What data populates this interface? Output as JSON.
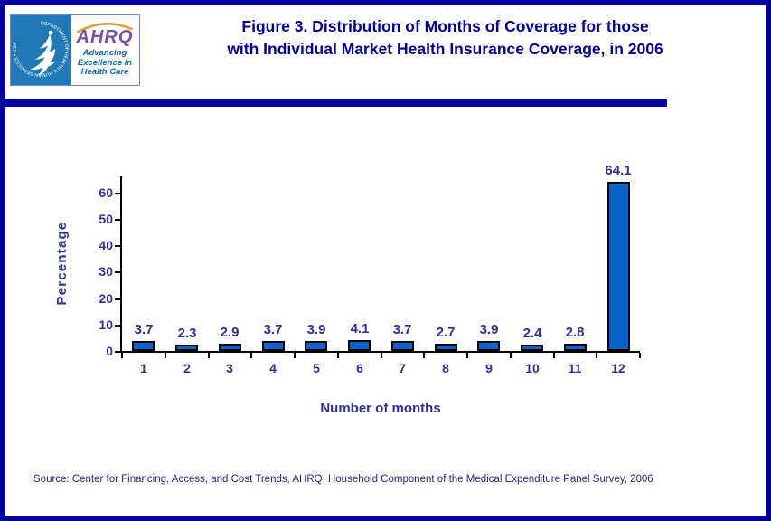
{
  "header": {
    "logo": {
      "seal_text": "DEPARTMENT OF HEALTH & HUMAN SERVICES • USA",
      "ahrq": "AHRQ",
      "tagline": [
        "Advancing",
        "Excellence in",
        "Health Care"
      ]
    },
    "title_line1": "Figure 3. Distribution of Months of Coverage for those",
    "title_line2": "with Individual Market Health Insurance Coverage, in 2006"
  },
  "chart_data": {
    "type": "bar",
    "title": "Figure 3. Distribution of Months of Coverage for those with Individual Market Health Insurance Coverage, in 2006",
    "categories": [
      "1",
      "2",
      "3",
      "4",
      "5",
      "6",
      "7",
      "8",
      "9",
      "10",
      "11",
      "12"
    ],
    "values": [
      3.7,
      2.3,
      2.9,
      3.7,
      3.9,
      4.1,
      3.7,
      2.7,
      3.9,
      2.4,
      2.8,
      64.1
    ],
    "xlabel": "Number of months",
    "ylabel": "Percentage",
    "ylim": [
      0,
      60
    ],
    "ytick_step": 10,
    "yticks": [
      0,
      10,
      20,
      30,
      40,
      50,
      60
    ],
    "grid": false,
    "legend": false,
    "bar_color": "#0d63cd",
    "label_color": "#2e3192",
    "data_labels": [
      "3.7",
      "2.3",
      "2.9",
      "3.7",
      "3.9",
      "4.1",
      "3.7",
      "2.7",
      "3.9",
      "2.4",
      "2.8",
      "64.1"
    ]
  },
  "footer": {
    "source": "Source: Center for Financing, Access, and Cost Trends, AHRQ, Household Component of the Medical Expenditure Panel Survey, 2006"
  },
  "colors": {
    "border_navy": "#0000a0",
    "title_navy": "#00008b",
    "chart_text_navy": "#2e3192",
    "bar_blue": "#0d63cd",
    "seal_blue": "#2279b7",
    "ahrq_purple": "#7b519e",
    "arc_orange": "#e49b3c",
    "tagline_blue": "#0f68ae"
  }
}
